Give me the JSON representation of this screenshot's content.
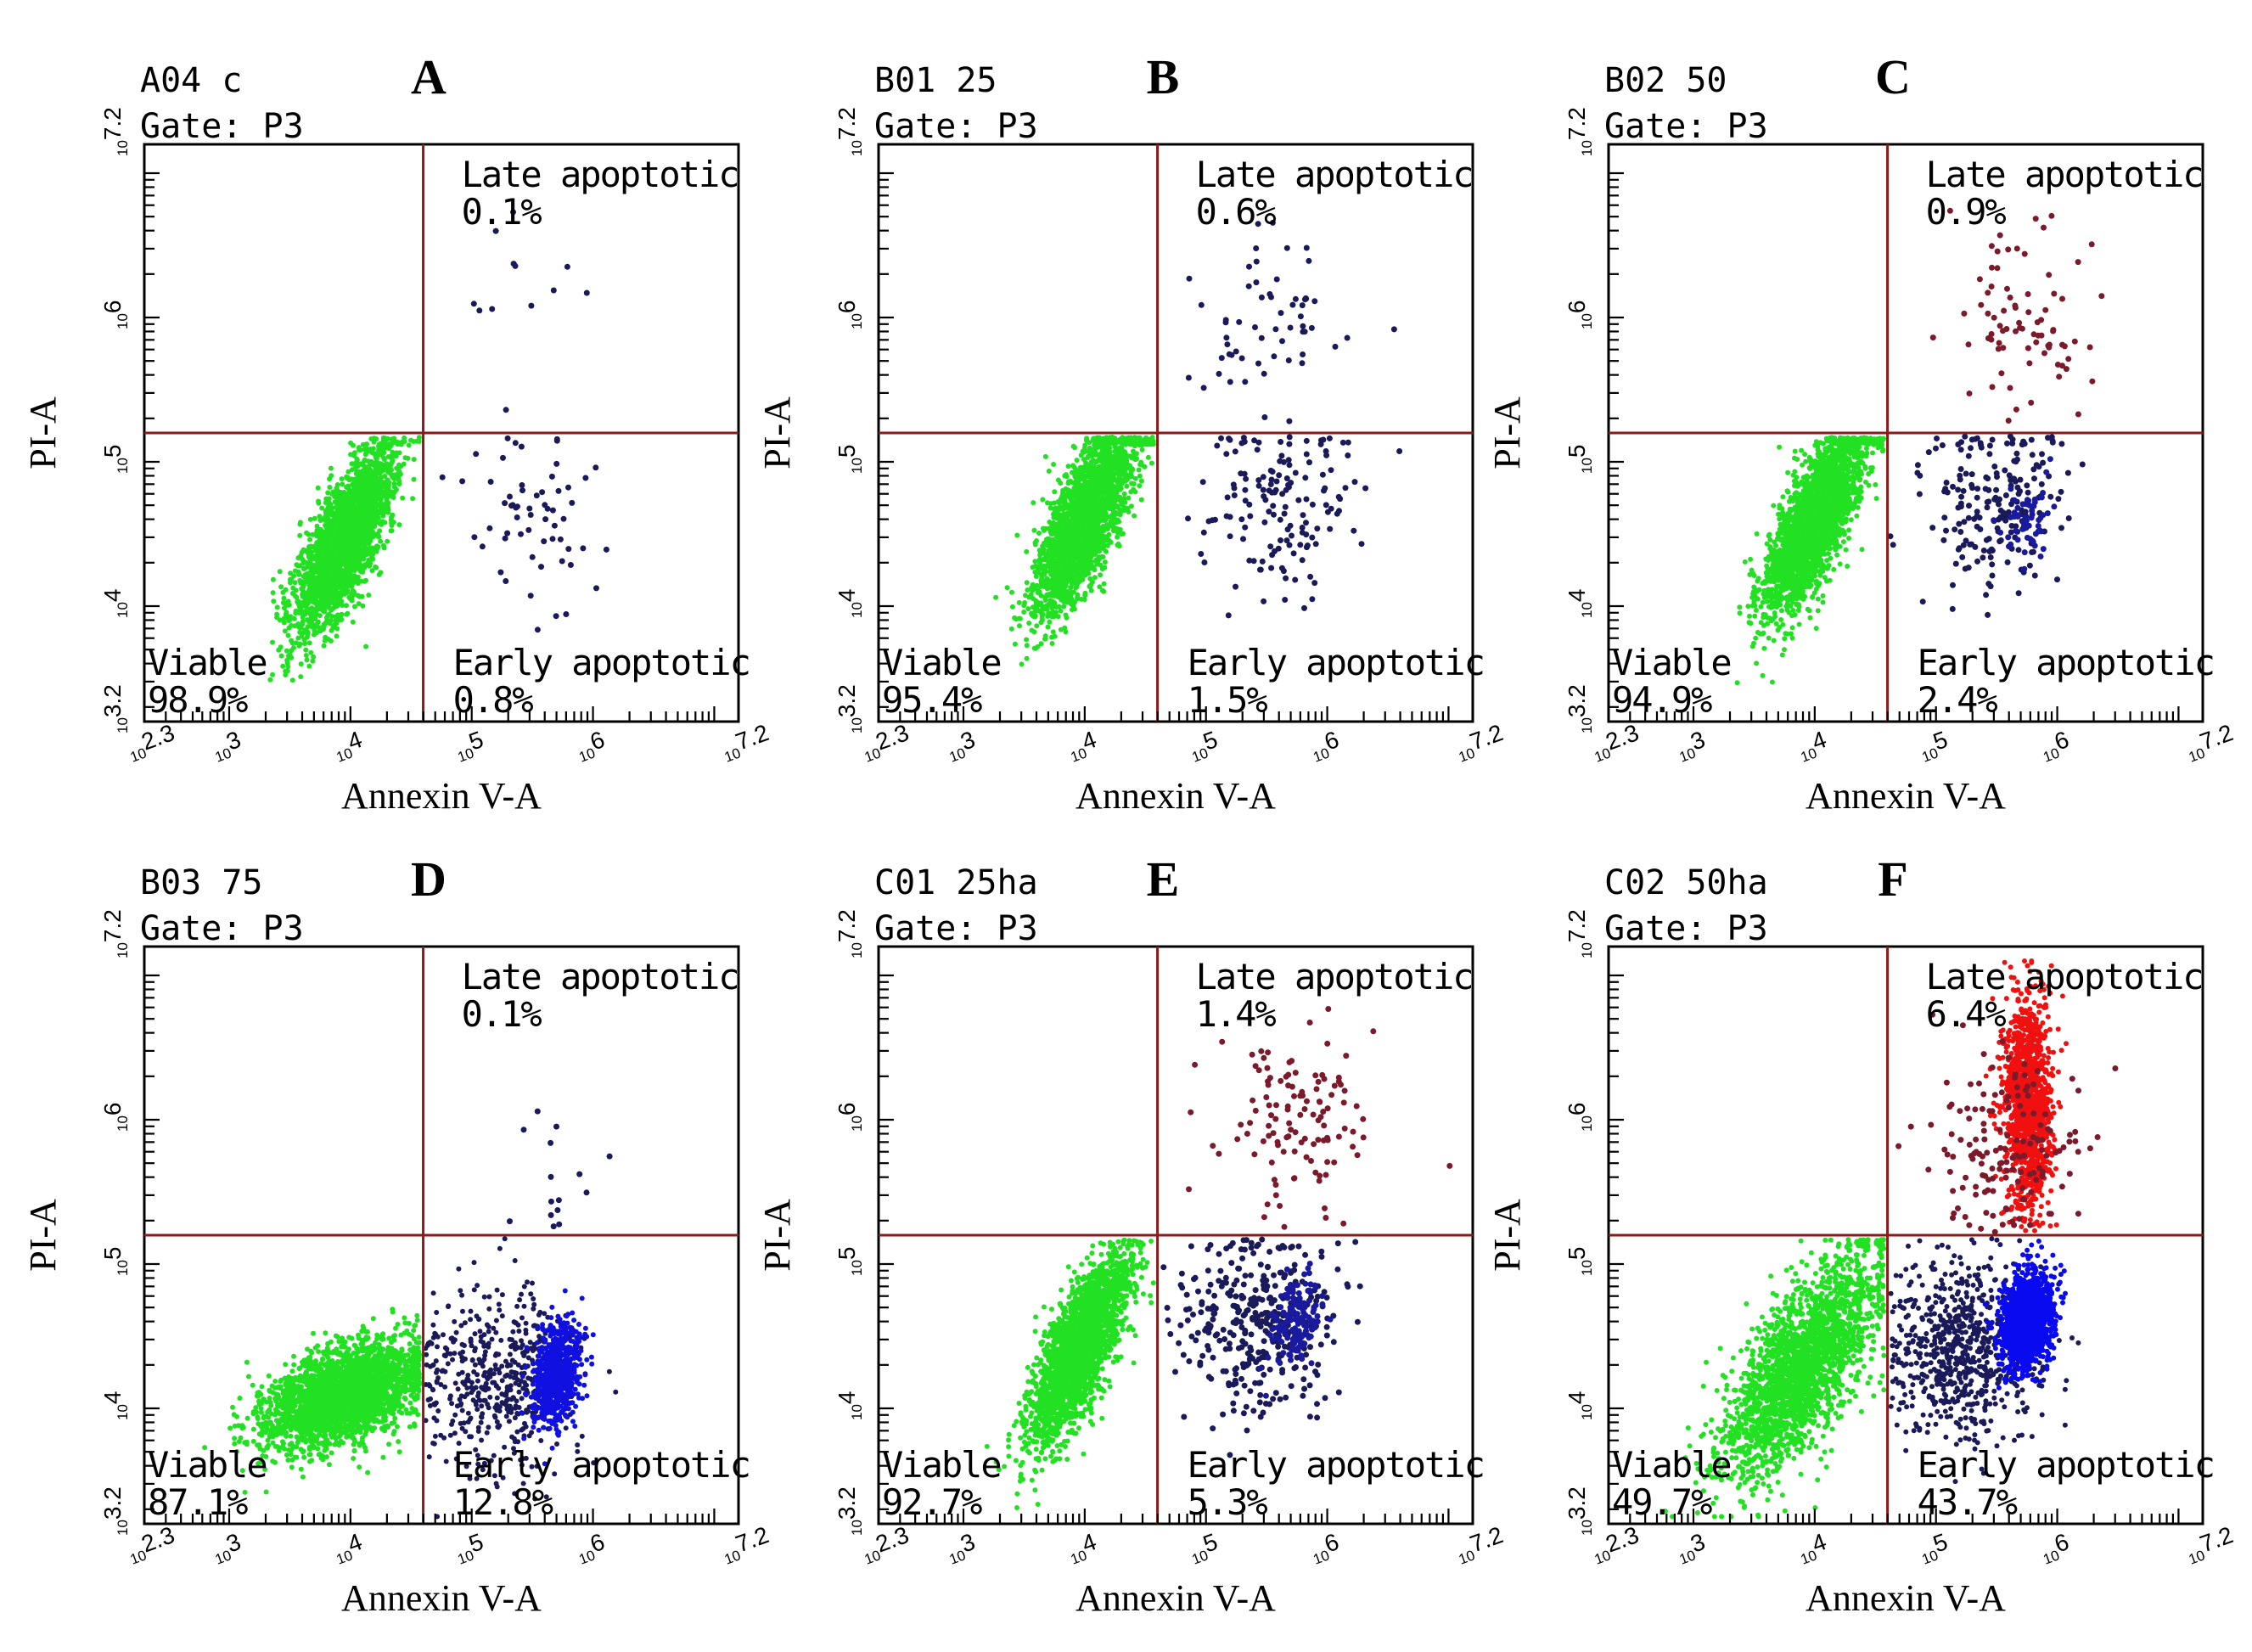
{
  "chart_data": [
    {
      "type": "scatter",
      "panel_letter": "A",
      "sample": "A04 c",
      "gate": "Gate: P3",
      "xlabel": "Annexin V-A",
      "ylabel": "PI-A",
      "xscale": "log",
      "yscale": "log",
      "xlim_log10": [
        2.3,
        7.2
      ],
      "ylim_log10": [
        3.2,
        7.2
      ],
      "x_ticks": [
        "10^2.3",
        "10^3",
        "10^4",
        "10^5",
        "10^6",
        "10^7.2"
      ],
      "y_ticks": [
        "10^3.2",
        "10^4",
        "10^5",
        "10^6",
        "10^7.2"
      ],
      "gate_x_log10": 4.6,
      "gate_y_log10": 5.2,
      "quadrants": [
        {
          "name": "Late apoptotic",
          "value": "0.1%",
          "position": "top-right"
        },
        {
          "name": "Viable",
          "value": "98.9%",
          "position": "bottom-left"
        },
        {
          "name": "Early apoptotic",
          "value": "0.8%",
          "position": "bottom-right"
        }
      ],
      "populations": [
        {
          "quadrant": "viable",
          "color": "#22e022",
          "center_log10": [
            3.95,
            4.45
          ],
          "n": 2600,
          "spread": "tight"
        },
        {
          "quadrant": "early",
          "color": "#1a1a5a",
          "center_log10": [
            5.6,
            4.75
          ],
          "n": 60,
          "spread": "scattered"
        },
        {
          "quadrant": "late",
          "color": "#1a1a5a",
          "center_log10": [
            5.6,
            6.2
          ],
          "n": 12,
          "spread": "scattered"
        }
      ]
    },
    {
      "type": "scatter",
      "panel_letter": "B",
      "sample": "B01 25",
      "gate": "Gate: P3",
      "xlabel": "Annexin V-A",
      "ylabel": "PI-A",
      "xscale": "log",
      "yscale": "log",
      "xlim_log10": [
        2.3,
        7.2
      ],
      "ylim_log10": [
        3.2,
        7.2
      ],
      "x_ticks": [
        "10^2.3",
        "10^3",
        "10^4",
        "10^5",
        "10^6",
        "10^7.2"
      ],
      "y_ticks": [
        "10^3.2",
        "10^4",
        "10^5",
        "10^6",
        "10^7.2"
      ],
      "gate_x_log10": 4.6,
      "gate_y_log10": 5.2,
      "quadrants": [
        {
          "name": "Late apoptotic",
          "value": "0.6%",
          "position": "top-right"
        },
        {
          "name": "Viable",
          "value": "95.4%",
          "position": "bottom-left"
        },
        {
          "name": "Early apoptotic",
          "value": "1.5%",
          "position": "bottom-right"
        }
      ],
      "populations": [
        {
          "quadrant": "viable",
          "color": "#22e022",
          "center_log10": [
            4.0,
            4.6
          ],
          "n": 2600,
          "spread": "tight"
        },
        {
          "quadrant": "early",
          "color": "#1a1a5a",
          "center_log10": [
            5.6,
            4.7
          ],
          "n": 150,
          "spread": "scattered"
        },
        {
          "quadrant": "late",
          "color": "#1a1a5a",
          "center_log10": [
            5.6,
            6.0
          ],
          "n": 60,
          "spread": "scattered"
        }
      ]
    },
    {
      "type": "scatter",
      "panel_letter": "C",
      "sample": "B02 50",
      "gate": "Gate: P3",
      "xlabel": "Annexin V-A",
      "ylabel": "PI-A",
      "xscale": "log",
      "yscale": "log",
      "xlim_log10": [
        2.3,
        7.2
      ],
      "ylim_log10": [
        3.2,
        7.2
      ],
      "x_ticks": [
        "10^2.3",
        "10^3",
        "10^4",
        "10^5",
        "10^6",
        "10^7.2"
      ],
      "y_ticks": [
        "10^3.2",
        "10^4",
        "10^5",
        "10^6",
        "10^7.2"
      ],
      "gate_x_log10": 4.6,
      "gate_y_log10": 5.2,
      "quadrants": [
        {
          "name": "Late apoptotic",
          "value": "0.9%",
          "position": "top-right"
        },
        {
          "name": "Viable",
          "value": "94.9%",
          "position": "bottom-left"
        },
        {
          "name": "Early apoptotic",
          "value": "2.4%",
          "position": "bottom-right"
        }
      ],
      "populations": [
        {
          "quadrant": "viable",
          "color": "#22e022",
          "center_log10": [
            4.0,
            4.6
          ],
          "n": 2600,
          "spread": "tight"
        },
        {
          "quadrant": "early",
          "color": "#1a1a5a",
          "center_log10": [
            5.5,
            4.7
          ],
          "n": 200,
          "spread": "scattered"
        },
        {
          "quadrant": "early",
          "color": "#1a1aa0",
          "center_log10": [
            5.75,
            4.55
          ],
          "n": 60,
          "spread": "tight"
        },
        {
          "quadrant": "late",
          "color": "#7a1a2a",
          "center_log10": [
            5.75,
            6.0
          ],
          "n": 80,
          "spread": "scattered"
        }
      ]
    },
    {
      "type": "scatter",
      "panel_letter": "D",
      "sample": "B03 75",
      "gate": "Gate: P3",
      "xlabel": "Annexin V-A",
      "ylabel": "PI-A",
      "xscale": "log",
      "yscale": "log",
      "xlim_log10": [
        2.3,
        7.2
      ],
      "ylim_log10": [
        3.2,
        7.2
      ],
      "x_ticks": [
        "10^2.3",
        "10^3",
        "10^4",
        "10^5",
        "10^6",
        "10^7.2"
      ],
      "y_ticks": [
        "10^3.2",
        "10^4",
        "10^5",
        "10^6",
        "10^7.2"
      ],
      "gate_x_log10": 4.6,
      "gate_y_log10": 5.2,
      "quadrants": [
        {
          "name": "Late apoptotic",
          "value": "0.1%",
          "position": "top-right"
        },
        {
          "name": "Viable",
          "value": "87.1%",
          "position": "bottom-left"
        },
        {
          "name": "Early apoptotic",
          "value": "12.8%",
          "position": "bottom-right"
        }
      ],
      "populations": [
        {
          "quadrant": "viable",
          "color": "#22e022",
          "center_log10": [
            3.95,
            4.1
          ],
          "n": 2600,
          "spread": "flat"
        },
        {
          "quadrant": "early",
          "color": "#1a1a5a",
          "center_log10": [
            5.2,
            4.2
          ],
          "n": 500,
          "spread": "scattered"
        },
        {
          "quadrant": "early",
          "color": "#1010e0",
          "center_log10": [
            5.7,
            4.25
          ],
          "n": 700,
          "spread": "tight"
        },
        {
          "quadrant": "late",
          "color": "#1a1a5a",
          "center_log10": [
            5.6,
            5.5
          ],
          "n": 15,
          "spread": "scattered"
        }
      ]
    },
    {
      "type": "scatter",
      "panel_letter": "E",
      "sample": "C01 25ha",
      "gate": "Gate: P3",
      "xlabel": "Annexin V-A",
      "ylabel": "PI-A",
      "xscale": "log",
      "yscale": "log",
      "xlim_log10": [
        2.3,
        7.2
      ],
      "ylim_log10": [
        3.2,
        7.2
      ],
      "x_ticks": [
        "10^2.3",
        "10^3",
        "10^4",
        "10^5",
        "10^6",
        "10^7.2"
      ],
      "y_ticks": [
        "10^3.2",
        "10^4",
        "10^5",
        "10^6",
        "10^7.2"
      ],
      "gate_x_log10": 4.6,
      "gate_y_log10": 5.2,
      "quadrants": [
        {
          "name": "Late apoptotic",
          "value": "1.4%",
          "position": "top-right"
        },
        {
          "name": "Viable",
          "value": "92.7%",
          "position": "bottom-left"
        },
        {
          "name": "Early apoptotic",
          "value": "5.3%",
          "position": "bottom-right"
        }
      ],
      "populations": [
        {
          "quadrant": "viable",
          "color": "#22e022",
          "center_log10": [
            3.95,
            4.4
          ],
          "n": 2600,
          "spread": "tight"
        },
        {
          "quadrant": "early",
          "color": "#1a1a5a",
          "center_log10": [
            5.4,
            4.6
          ],
          "n": 350,
          "spread": "scattered"
        },
        {
          "quadrant": "early",
          "color": "#1a1aa0",
          "center_log10": [
            5.75,
            4.6
          ],
          "n": 150,
          "spread": "tight"
        },
        {
          "quadrant": "late",
          "color": "#7a1a2a",
          "center_log10": [
            5.7,
            6.0
          ],
          "n": 120,
          "spread": "scattered"
        }
      ]
    },
    {
      "type": "scatter",
      "panel_letter": "F",
      "sample": "C02 50ha",
      "gate": "Gate: P3",
      "xlabel": "Annexin V-A",
      "ylabel": "PI-A",
      "xscale": "log",
      "yscale": "log",
      "xlim_log10": [
        2.3,
        7.2
      ],
      "ylim_log10": [
        3.2,
        7.2
      ],
      "x_ticks": [
        "10^2.3",
        "10^3",
        "10^4",
        "10^5",
        "10^6",
        "10^7.2"
      ],
      "y_ticks": [
        "10^3.2",
        "10^4",
        "10^5",
        "10^6",
        "10^7.2"
      ],
      "gate_x_log10": 4.6,
      "gate_y_log10": 5.2,
      "quadrants": [
        {
          "name": "Late apoptotic",
          "value": "6.4%",
          "position": "top-right"
        },
        {
          "name": "Viable",
          "value": "49.7%",
          "position": "bottom-left"
        },
        {
          "name": "Early apoptotic",
          "value": "43.7%",
          "position": "bottom-right"
        }
      ],
      "populations": [
        {
          "quadrant": "viable",
          "color": "#22e022",
          "center_log10": [
            3.9,
            4.3
          ],
          "n": 2200,
          "spread": "wide"
        },
        {
          "quadrant": "early",
          "color": "#1a1a5a",
          "center_log10": [
            5.2,
            4.4
          ],
          "n": 700,
          "spread": "scattered"
        },
        {
          "quadrant": "early",
          "color": "#0a0af0",
          "center_log10": [
            5.75,
            4.6
          ],
          "n": 1500,
          "spread": "tight"
        },
        {
          "quadrant": "late",
          "color": "#f01010",
          "center_log10": [
            5.75,
            6.1
          ],
          "n": 1200,
          "spread": "column"
        },
        {
          "quadrant": "late",
          "color": "#7a1a2a",
          "center_log10": [
            5.55,
            5.8
          ],
          "n": 150,
          "spread": "scattered"
        }
      ]
    }
  ],
  "colors": {
    "gate_line": "#8b1a1a",
    "axis": "#000000",
    "viable": "#22e022",
    "sparse": "#1a1a5a",
    "dense_blue": "#0a0af0",
    "late_red": "#f01010"
  }
}
